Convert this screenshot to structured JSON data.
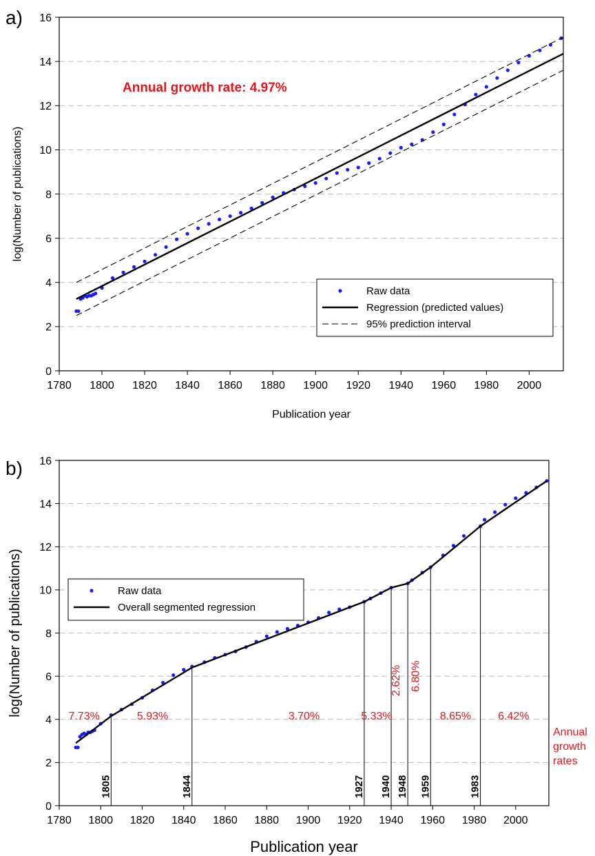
{
  "colors": {
    "raw": "#1a1aff",
    "regression": "#000000",
    "grid": "#bbbbbb",
    "annotation": "#e8141b"
  },
  "chart_data": [
    {
      "panel_label": "a)",
      "type": "scatter",
      "xlabel": "Publication year",
      "ylabel": "log(Number of publications)",
      "xlim": [
        1780,
        2016
      ],
      "ylim": [
        0,
        16
      ],
      "x_ticks": [
        1780,
        1800,
        1820,
        1840,
        1860,
        1880,
        1900,
        1920,
        1940,
        1960,
        1980,
        2000
      ],
      "y_ticks": [
        0,
        2,
        4,
        6,
        8,
        10,
        12,
        14,
        16
      ],
      "grid": "horizontal dashed",
      "legend_position": "lower-right",
      "annotation": "Annual growth rate: 4.97%",
      "series": [
        {
          "name": "Raw data",
          "kind": "points",
          "x": [
            1788,
            1789,
            1790,
            1791,
            1792,
            1793,
            1794,
            1795,
            1796,
            1797,
            1800,
            1805,
            1810,
            1815,
            1820,
            1825,
            1830,
            1835,
            1840,
            1845,
            1850,
            1855,
            1860,
            1865,
            1870,
            1875,
            1880,
            1885,
            1890,
            1895,
            1900,
            1905,
            1910,
            1915,
            1920,
            1925,
            1930,
            1935,
            1940,
            1945,
            1950,
            1955,
            1960,
            1965,
            1970,
            1975,
            1980,
            1985,
            1990,
            1995,
            2000,
            2005,
            2010,
            2015
          ],
          "y": [
            2.7,
            2.7,
            3.25,
            3.3,
            3.4,
            3.35,
            3.4,
            3.4,
            3.45,
            3.5,
            3.75,
            4.2,
            4.45,
            4.7,
            4.95,
            5.25,
            5.6,
            5.95,
            6.2,
            6.45,
            6.65,
            6.85,
            7.0,
            7.15,
            7.35,
            7.6,
            7.85,
            8.05,
            8.2,
            8.35,
            8.5,
            8.7,
            8.95,
            9.1,
            9.2,
            9.4,
            9.6,
            9.85,
            10.1,
            10.25,
            10.45,
            10.8,
            11.15,
            11.6,
            12.05,
            12.5,
            12.85,
            13.25,
            13.6,
            13.95,
            14.25,
            14.5,
            14.75,
            15.05
          ]
        },
        {
          "name": "Regression (predicted values)",
          "kind": "line",
          "x": [
            1788,
            2016
          ],
          "y": [
            3.25,
            14.35
          ]
        },
        {
          "name": "95% prediction interval",
          "kind": "dashed",
          "x": [
            1788,
            2016
          ],
          "y": [
            4.0,
            15.1
          ]
        },
        {
          "name": "",
          "kind": "dashed",
          "x": [
            1788,
            2016
          ],
          "y": [
            2.5,
            13.6
          ]
        }
      ]
    },
    {
      "panel_label": "b)",
      "type": "scatter",
      "xlabel": "Publication year",
      "ylabel": "log(Number of publications)",
      "xlim": [
        1780,
        2016
      ],
      "ylim": [
        0,
        16
      ],
      "x_ticks": [
        1780,
        1800,
        1820,
        1840,
        1860,
        1880,
        1900,
        1920,
        1940,
        1960,
        1980,
        2000
      ],
      "y_ticks": [
        0,
        2,
        4,
        6,
        8,
        10,
        12,
        14,
        16
      ],
      "grid": "horizontal dashed",
      "legend_position": "middle-left",
      "side_label": [
        "Annual",
        "growth",
        "rates"
      ],
      "breakpoints": [
        {
          "year": 1805,
          "label": "1805",
          "y_top": 4.2
        },
        {
          "year": 1844,
          "label": "1844",
          "y_top": 6.4
        },
        {
          "year": 1927,
          "label": "1927",
          "y_top": 9.45
        },
        {
          "year": 1940,
          "label": "1940",
          "y_top": 10.1
        },
        {
          "year": 1948,
          "label": "1948",
          "y_top": 10.3
        },
        {
          "year": 1959,
          "label": "1959",
          "y_top": 11.05
        },
        {
          "year": 1983,
          "label": "1983",
          "y_top": 12.95
        }
      ],
      "growth_rates": [
        {
          "label": "7.73%",
          "x": 1792,
          "y": 4.0,
          "vertical": false
        },
        {
          "label": "5.93%",
          "x": 1825,
          "y": 4.0,
          "vertical": false
        },
        {
          "label": "3.70%",
          "x": 1898,
          "y": 4.0,
          "vertical": false
        },
        {
          "label": "5.33%",
          "x": 1933,
          "y": 4.0,
          "vertical": false
        },
        {
          "label": "2.62%",
          "x": 1944,
          "y": 5.8,
          "vertical": true
        },
        {
          "label": "6.80%",
          "x": 1953.5,
          "y": 6.0,
          "vertical": true
        },
        {
          "label": "8.65%",
          "x": 1971,
          "y": 4.0,
          "vertical": false
        },
        {
          "label": "6.42%",
          "x": 1999,
          "y": 4.0,
          "vertical": false
        }
      ],
      "series": [
        {
          "name": "Raw data",
          "kind": "points",
          "x": [
            1788,
            1789,
            1790,
            1791,
            1792,
            1793,
            1794,
            1795,
            1796,
            1797,
            1800,
            1805,
            1810,
            1815,
            1820,
            1825,
            1830,
            1835,
            1840,
            1844,
            1850,
            1855,
            1860,
            1865,
            1870,
            1875,
            1880,
            1885,
            1890,
            1895,
            1900,
            1905,
            1910,
            1915,
            1920,
            1927,
            1930,
            1935,
            1940,
            1948,
            1950,
            1955,
            1959,
            1965,
            1970,
            1975,
            1983,
            1985,
            1990,
            1995,
            2000,
            2005,
            2010,
            2015
          ],
          "y": [
            2.7,
            2.7,
            3.2,
            3.3,
            3.35,
            3.3,
            3.4,
            3.4,
            3.45,
            3.5,
            3.8,
            4.2,
            4.45,
            4.7,
            5.0,
            5.35,
            5.7,
            6.05,
            6.3,
            6.45,
            6.65,
            6.85,
            7.0,
            7.15,
            7.35,
            7.6,
            7.85,
            8.05,
            8.2,
            8.35,
            8.5,
            8.7,
            8.95,
            9.1,
            9.2,
            9.45,
            9.6,
            9.85,
            10.1,
            10.3,
            10.45,
            10.8,
            11.05,
            11.6,
            12.05,
            12.5,
            12.95,
            13.25,
            13.6,
            13.95,
            14.25,
            14.5,
            14.75,
            15.05
          ]
        },
        {
          "name": "Overall segmented regression",
          "kind": "line",
          "x": [
            1788,
            1805,
            1844,
            1927,
            1940,
            1948,
            1959,
            1983,
            2015
          ],
          "y": [
            2.9,
            4.15,
            6.4,
            9.45,
            10.1,
            10.3,
            11.05,
            12.95,
            15.05
          ]
        }
      ]
    }
  ]
}
